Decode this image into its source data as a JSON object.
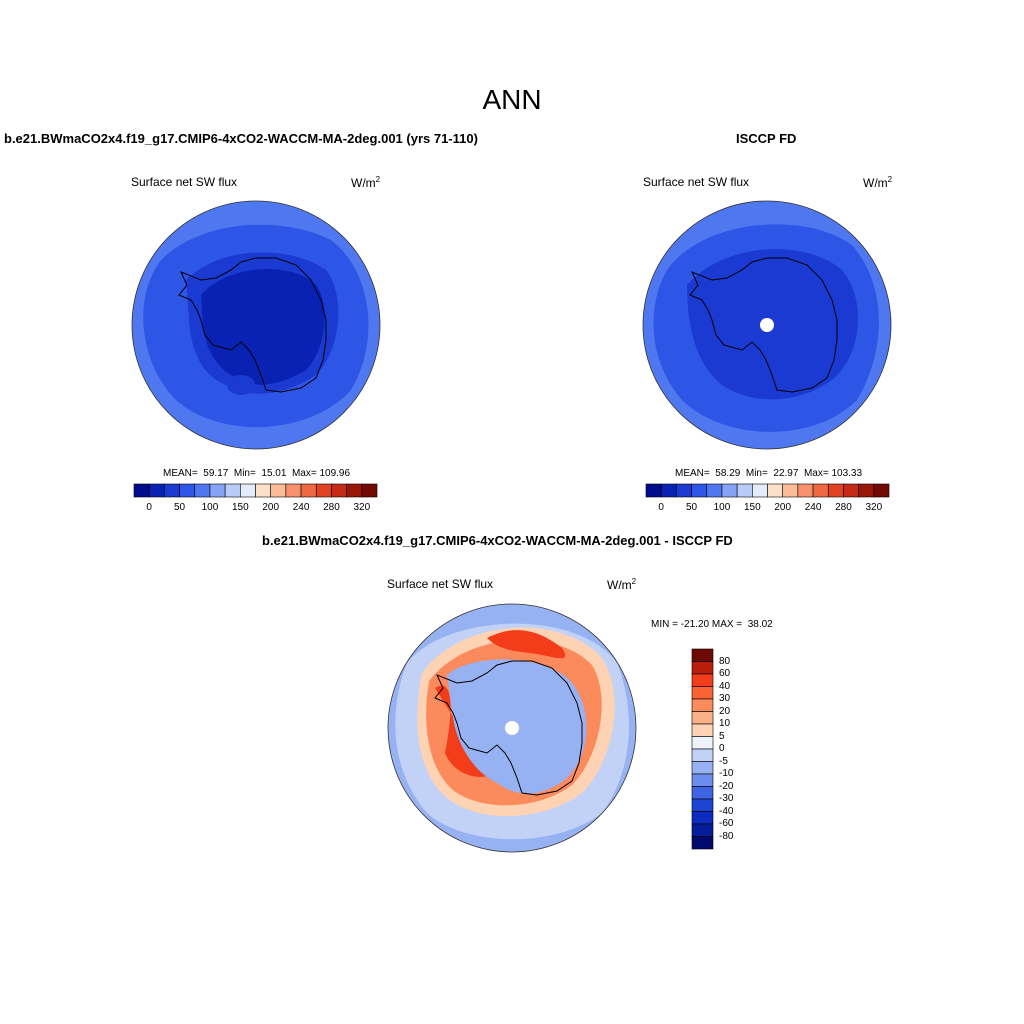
{
  "main_title": "ANN",
  "panels": [
    {
      "title": "b.e21.BWmaCO2x4.f19_g17.CMIP6-4xCO2-WACCM-MA-2deg.001 (yrs 71-110)",
      "variable": "Surface net SW flux",
      "units_base": "W/m",
      "units_exp": "2",
      "stats": "MEAN=  59.17  Min=  15.01  Max= 109.96"
    },
    {
      "title": "ISCCP FD",
      "variable": "Surface net SW flux",
      "units_base": "W/m",
      "units_exp": "2",
      "stats": "MEAN=  58.29  Min=  22.97  Max= 103.33"
    },
    {
      "title": "b.e21.BWmaCO2x4.f19_g17.CMIP6-4xCO2-WACCM-MA-2deg.001 - ISCCP FD",
      "variable": "Surface net SW flux",
      "units_base": "W/m",
      "units_exp": "2",
      "stats": "MIN = -21.20 MAX =  38.02"
    }
  ],
  "abs_colorbar": {
    "colors": [
      "#000c8c",
      "#0a22b4",
      "#1a3ad2",
      "#2e56e6",
      "#4f78f0",
      "#86a2f4",
      "#b8cbf8",
      "#e2ecfb",
      "#fde0ca",
      "#fbbc9b",
      "#f7906c",
      "#f0683f",
      "#e24224",
      "#c42a14",
      "#9a1608",
      "#720a02"
    ],
    "labels": [
      "0",
      "50",
      "100",
      "150",
      "200",
      "240",
      "280",
      "320"
    ]
  },
  "diff_colorbar": {
    "colors": [
      "#6e0a02",
      "#bb1d0c",
      "#f23c1a",
      "#f96232",
      "#fb8a5c",
      "#fcb088",
      "#fdd3b4",
      "#eef2fb",
      "#c1d2f6",
      "#97b2f2",
      "#6b8ded",
      "#4065e3",
      "#1e44d2",
      "#0d2cbd",
      "#041d98",
      "#000a6e"
    ],
    "labels": [
      "80",
      "60",
      "40",
      "30",
      "20",
      "10",
      "5",
      "0",
      "-5",
      "-10",
      "-20",
      "-30",
      "-40",
      "-60",
      "-80"
    ]
  },
  "map_colors": {
    "ocean_outer": "#4f78f0",
    "ocean_inner": "#2e56e6",
    "ice_edge": "#1a3ad2",
    "ice_core": "#0a22b4",
    "ice_core_obs": "#1a3ad2",
    "diff_ocean": "#97b2f2",
    "diff_ring_light": "#fdd3b4",
    "diff_ring_mid": "#fb8a5c",
    "diff_ring_dark": "#f23c1a",
    "diff_land": "#97b2f2",
    "diff_ocean_light": "#c1d2f6"
  }
}
